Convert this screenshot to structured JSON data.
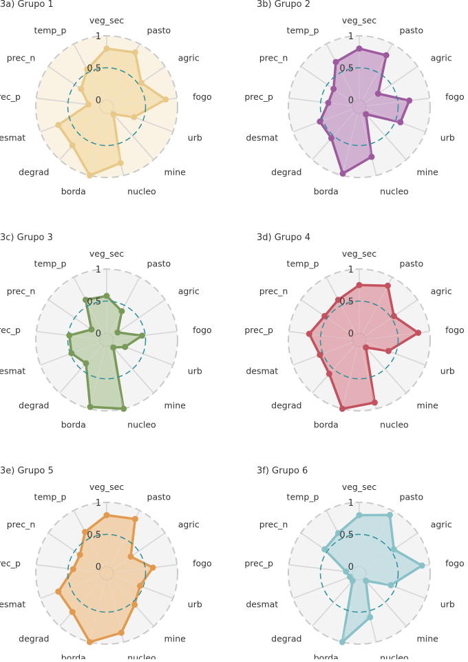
{
  "figure": {
    "axes": [
      "veg_sec",
      "pasto",
      "agric",
      "fogo",
      "urb",
      "mine",
      "nucleo",
      "borda",
      "degrad",
      "desmat",
      "prec_p",
      "prec_n",
      "temp_p"
    ],
    "rlabels": [
      "0",
      "0.5",
      "1"
    ],
    "grid_ring_color": "#c9c9c9",
    "half_ring_color": "#2a8f9a",
    "disc_color": "#f4f4f4"
  },
  "chart_data": [
    {
      "type": "radar",
      "title": "3a) Grupo 1",
      "color": "#e8c98a",
      "fill": "#f3dcab",
      "bg": "#faf3e3",
      "rlim": [
        0,
        1
      ],
      "categories": [
        "veg_sec",
        "pasto",
        "agric",
        "fogo",
        "urb",
        "mine",
        "nucleo",
        "borda",
        "degrad",
        "desmat",
        "prec_p",
        "prec_n",
        "temp_p"
      ],
      "values": [
        0.8,
        0.85,
        0.55,
        0.82,
        0.35,
        0.05,
        0.8,
        1.0,
        0.7,
        0.7,
        0.18,
        0.38,
        0.55
      ]
    },
    {
      "type": "radar",
      "title": "3b) Grupo 2",
      "color": "#9e5a9e",
      "fill": "#c59bc5",
      "bg": "#f4f4f4",
      "rlim": [
        0,
        1
      ],
      "categories": [
        "veg_sec",
        "pasto",
        "agric",
        "fogo",
        "urb",
        "mine",
        "nucleo",
        "borda",
        "degrad",
        "desmat",
        "prec_p",
        "prec_n",
        "temp_p"
      ],
      "values": [
        0.8,
        0.8,
        0.25,
        0.68,
        0.58,
        0.05,
        0.7,
        0.97,
        0.55,
        0.55,
        0.38,
        0.38,
        0.68
      ]
    },
    {
      "type": "radar",
      "title": "3c) Grupo 3",
      "color": "#7a9a5a",
      "fill": "#b8cca6",
      "bg": "#f4f4f4",
      "rlim": [
        0,
        1
      ],
      "categories": [
        "veg_sec",
        "pasto",
        "agric",
        "fogo",
        "urb",
        "mine",
        "nucleo",
        "borda",
        "degrad",
        "desmat",
        "prec_p",
        "prec_n",
        "temp_p"
      ],
      "values": [
        0.58,
        0.4,
        0.1,
        0.45,
        0.2,
        0.05,
        1.0,
        0.97,
        0.38,
        0.48,
        0.48,
        0.18,
        0.6
      ]
    },
    {
      "type": "radar",
      "title": "3d) Grupo 4",
      "color": "#c4515e",
      "fill": "#dc9aa1",
      "bg": "#f4f4f4",
      "rlim": [
        0,
        1
      ],
      "categories": [
        "veg_sec",
        "pasto",
        "agric",
        "fogo",
        "urb",
        "mine",
        "nucleo",
        "borda",
        "degrad",
        "desmat",
        "prec_p",
        "prec_n",
        "temp_p"
      ],
      "values": [
        0.75,
        0.85,
        0.55,
        0.82,
        0.38,
        0.05,
        0.9,
        1.0,
        0.6,
        0.55,
        0.68,
        0.55,
        0.6
      ]
    },
    {
      "type": "radar",
      "title": "3e) Grupo 5",
      "color": "#e19a4e",
      "fill": "#f0c798",
      "bg": "#f4f4f4",
      "rlim": [
        0,
        1
      ],
      "categories": [
        "veg_sec",
        "pasto",
        "agric",
        "fogo",
        "urb",
        "mine",
        "nucleo",
        "borda",
        "degrad",
        "desmat",
        "prec_p",
        "prec_n",
        "temp_p"
      ],
      "values": [
        0.8,
        0.85,
        0.35,
        0.62,
        0.45,
        0.55,
        0.85,
        1.0,
        0.7,
        0.7,
        0.42,
        0.4,
        0.62
      ]
    },
    {
      "type": "radar",
      "title": "3f) Grupo 6",
      "color": "#88c1c7",
      "fill": "#b9dadd",
      "bg": "#f4f4f4",
      "rlim": [
        0,
        1
      ],
      "categories": [
        "veg_sec",
        "pasto",
        "agric",
        "fogo",
        "urb",
        "mine",
        "nucleo",
        "borda",
        "degrad",
        "desmat",
        "prec_p",
        "prec_n",
        "temp_p"
      ],
      "values": [
        0.8,
        0.92,
        0.55,
        0.88,
        0.42,
        0.05,
        0.6,
        1.0,
        0.05,
        0.05,
        0.1,
        0.55,
        0.6
      ]
    }
  ]
}
